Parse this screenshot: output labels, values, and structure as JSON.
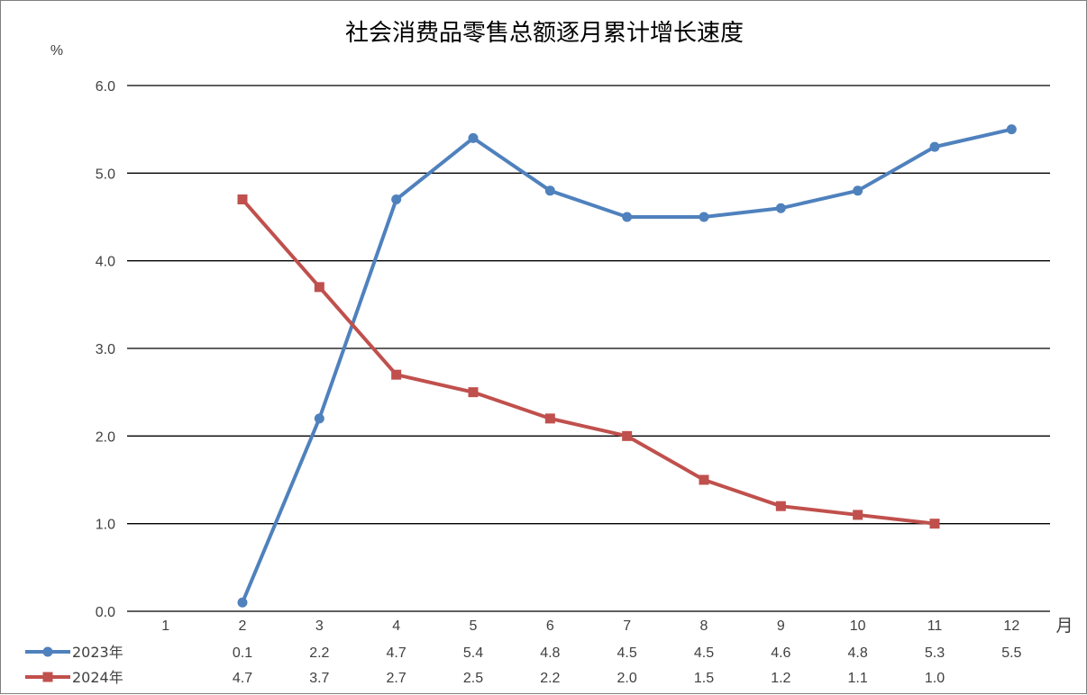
{
  "chart_data": {
    "type": "line",
    "title": "社会消费品零售总额逐月累计增长速度",
    "ylabel": "%",
    "xlabel": "月",
    "ylim": [
      0,
      6
    ],
    "yticks": [
      "0.0",
      "1.0",
      "2.0",
      "3.0",
      "4.0",
      "5.0",
      "6.0"
    ],
    "categories": [
      "1",
      "2",
      "3",
      "4",
      "5",
      "6",
      "7",
      "8",
      "9",
      "10",
      "11",
      "12"
    ],
    "grid": true,
    "legend_position": "bottom-left data table",
    "series": [
      {
        "name": "2023年",
        "color": "#4f81bd",
        "marker": "circle",
        "values": [
          null,
          0.1,
          2.2,
          4.7,
          5.4,
          4.8,
          4.5,
          4.5,
          4.6,
          4.8,
          5.3,
          5.5
        ],
        "labels": [
          "",
          "0.1",
          "2.2",
          "4.7",
          "5.4",
          "4.8",
          "4.5",
          "4.5",
          "4.6",
          "4.8",
          "5.3",
          "5.5"
        ]
      },
      {
        "name": "2024年",
        "color": "#c0504d",
        "marker": "square",
        "values": [
          null,
          4.7,
          3.7,
          2.7,
          2.5,
          2.2,
          2.0,
          1.5,
          1.2,
          1.1,
          1.0,
          null
        ],
        "labels": [
          "",
          "4.7",
          "3.7",
          "2.7",
          "2.5",
          "2.2",
          "2.0",
          "1.5",
          "1.2",
          "1.1",
          "1.0",
          ""
        ]
      }
    ]
  }
}
